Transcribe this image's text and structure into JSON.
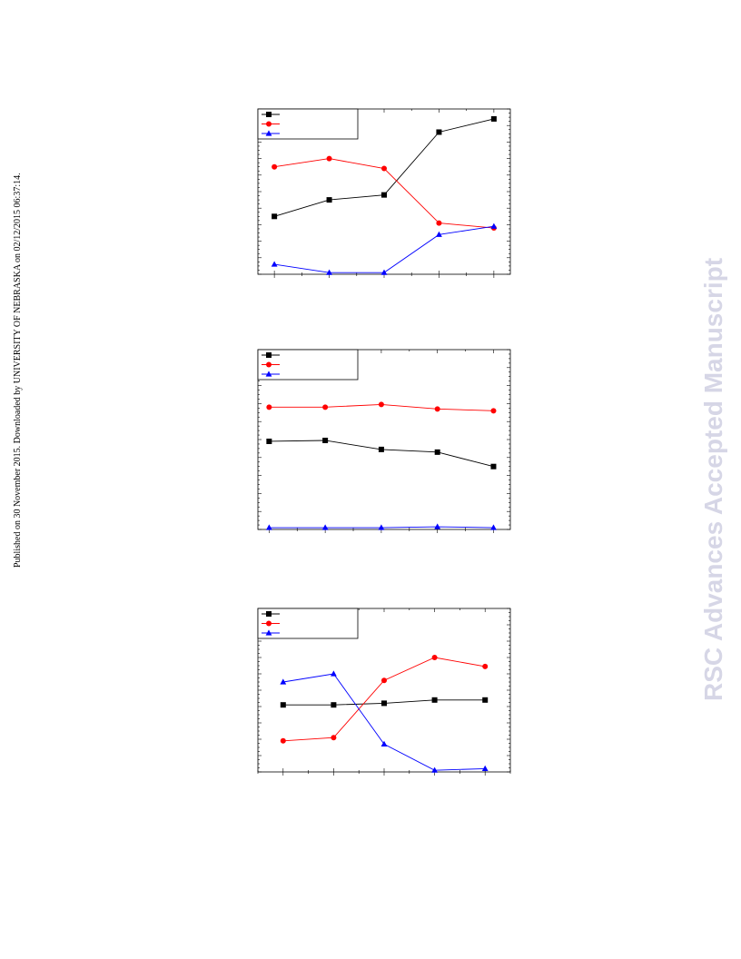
{
  "sidebar": {
    "published_note": "Published on 30 November 2015. Downloaded by UNIVERSITY OF NEBRASKA on 02/12/2015 06:37:14."
  },
  "watermark": {
    "text": "RSC Advances Accepted Manuscript"
  },
  "chart_data": [
    {
      "type": "line",
      "title": "",
      "xlabel": "",
      "ylabel": "",
      "x": [
        1,
        2,
        3,
        4,
        5
      ],
      "xlim": [
        0.7,
        5.3
      ],
      "ylim": [
        0,
        100
      ],
      "grid": false,
      "legend": "top-left",
      "series": [
        {
          "marker": "square",
          "color": "#000000",
          "values": [
            35,
            45,
            48,
            86,
            94
          ]
        },
        {
          "marker": "circle",
          "color": "#ff0000",
          "values": [
            65,
            70,
            64,
            31,
            28
          ]
        },
        {
          "marker": "triangle",
          "color": "#0000ff",
          "values": [
            6,
            1,
            1,
            24,
            29
          ]
        }
      ]
    },
    {
      "type": "line",
      "title": "",
      "xlabel": "",
      "ylabel": "",
      "x": [
        1,
        2,
        3,
        4,
        5
      ],
      "xlim": [
        0.8,
        5.3
      ],
      "ylim": [
        0,
        100
      ],
      "grid": false,
      "legend": "top-left",
      "series": [
        {
          "marker": "square",
          "color": "#000000",
          "values": [
            49,
            49.5,
            44.5,
            43,
            35
          ]
        },
        {
          "marker": "circle",
          "color": "#ff0000",
          "values": [
            68,
            68,
            69.5,
            67,
            66
          ]
        },
        {
          "marker": "triangle",
          "color": "#0000ff",
          "values": [
            1,
            1,
            1,
            1.5,
            1
          ]
        }
      ]
    },
    {
      "type": "line",
      "title": "",
      "xlabel": "",
      "ylabel": "",
      "x": [
        1,
        2,
        3,
        4,
        5
      ],
      "xlim": [
        0.5,
        5.5
      ],
      "ylim": [
        0,
        100
      ],
      "grid": false,
      "legend": "top-left",
      "series": [
        {
          "marker": "square",
          "color": "#000000",
          "values": [
            41,
            41,
            42,
            44,
            44
          ]
        },
        {
          "marker": "circle",
          "color": "#ff0000",
          "values": [
            19,
            21,
            56,
            70,
            64.5
          ]
        },
        {
          "marker": "triangle",
          "color": "#0000ff",
          "values": [
            55,
            60,
            17,
            1,
            2
          ]
        }
      ]
    }
  ]
}
